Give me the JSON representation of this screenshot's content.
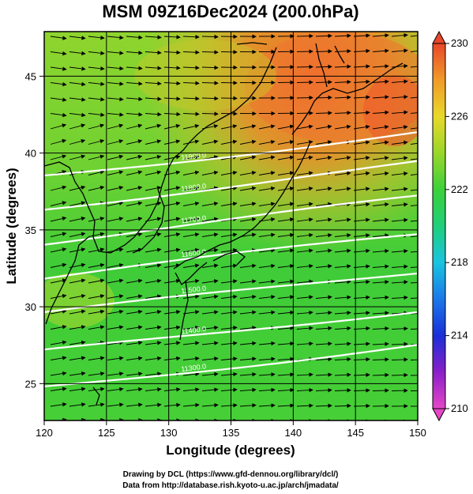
{
  "title": "MSM 09Z16Dec2024 (200.0hPa)",
  "xlabel": "Longitude (degrees)",
  "ylabel": "Latitude  (degrees)",
  "x_ticks": [
    "120",
    "125",
    "130",
    "135",
    "140",
    "145",
    "150"
  ],
  "y_ticks": [
    "25",
    "30",
    "35",
    "40",
    "45"
  ],
  "colorbar": {
    "ticks": [
      "230",
      "226",
      "222",
      "218",
      "214",
      "210"
    ],
    "min": 210,
    "max": 230
  },
  "credits": [
    "Drawing by DCL (https://www.gfd-dennou.org/library/dcl/)",
    "Data from http://database.rish.kyoto-u.ac.jp/arch/jmadata/"
  ],
  "contour_labels": [
    "11900.0",
    "11800.0",
    "11700.0",
    "11600.0",
    "11500.0",
    "11400.0",
    "11300.0"
  ],
  "colors": {
    "warm": "#e8572a",
    "green": "#3fcf3a",
    "yellowgreen": "#a6d62c",
    "contour": "#ffffff"
  },
  "chart_data": {
    "type": "heatmap",
    "field": "temperature",
    "xlim": [
      120,
      150
    ],
    "ylim": [
      22.6,
      47.9
    ],
    "grid": true,
    "colorbar_range": [
      210,
      230
    ],
    "approx_field": {
      "description_points": [
        {
          "lon": 140,
          "lat": 45,
          "value": 228
        },
        {
          "lon": 148,
          "lat": 43,
          "value": 229
        },
        {
          "lon": 130,
          "lat": 43,
          "value": 225
        },
        {
          "lon": 122,
          "lat": 45,
          "value": 223
        },
        {
          "lon": 135,
          "lat": 33,
          "value": 222
        },
        {
          "lon": 128,
          "lat": 27,
          "value": 223
        },
        {
          "lon": 145,
          "lat": 25,
          "value": 222
        }
      ]
    },
    "wind": "westerly",
    "contours": "geopotential height (white lines)"
  }
}
